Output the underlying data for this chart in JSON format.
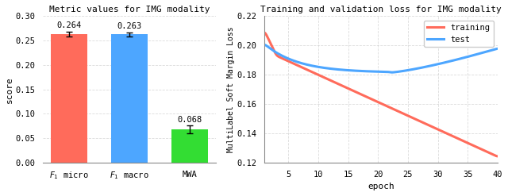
{
  "bar_categories": [
    "$F_1$ micro",
    "$F_1$ macro",
    "MWA"
  ],
  "bar_values": [
    0.264,
    0.263,
    0.068
  ],
  "bar_errors": [
    0.005,
    0.004,
    0.008
  ],
  "bar_colors": [
    "#ff6b5b",
    "#4da6ff",
    "#33dd33"
  ],
  "bar_title": "Metric values for IMG modality",
  "bar_ylabel": "score",
  "bar_ylim": [
    0.0,
    0.3
  ],
  "bar_yticks": [
    0.0,
    0.05,
    0.1,
    0.15,
    0.2,
    0.25,
    0.3
  ],
  "line_title": "Training and validation loss for IMG modality",
  "line_xlabel": "epoch",
  "line_ylabel": "MultiLabel Soft Margin Loss",
  "line_ylim": [
    0.12,
    0.22
  ],
  "line_xlim": [
    1,
    40
  ],
  "line_xticks": [
    5,
    10,
    15,
    20,
    25,
    30,
    35,
    40
  ],
  "line_yticks": [
    0.12,
    0.14,
    0.16,
    0.18,
    0.2,
    0.22
  ],
  "train_color": "#ff6b5b",
  "test_color": "#4da6ff",
  "bg_color": "#ffffff",
  "grid_color": "#cccccc"
}
